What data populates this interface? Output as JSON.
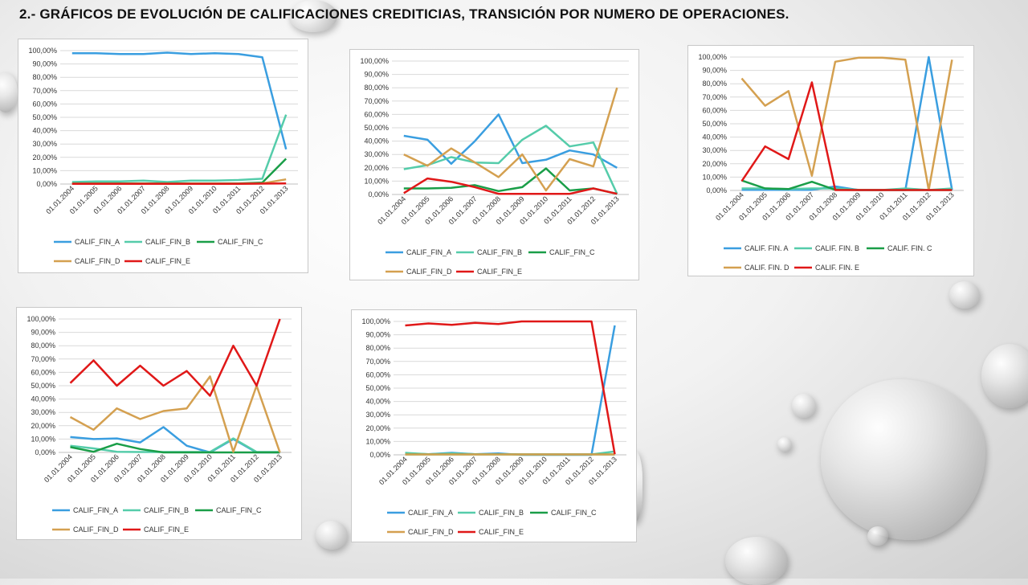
{
  "page": {
    "title": "2.- GRÁFICOS DE EVOLUCIÓN DE CALIFICACIONES CREDITICIAS, TRANSICIÓN POR NUMERO DE OPERACIONES."
  },
  "colors": {
    "A": "#3a9ee0",
    "B": "#55ccaa",
    "C": "#1a9e48",
    "D": "#d4a050",
    "E": "#e01818",
    "grid": "#d9d9d9",
    "axis": "#bfbfbf"
  },
  "chart_data": [
    {
      "type": "line",
      "categories": [
        "01.01.2004",
        "01.01.2005",
        "01.01.2006",
        "01.01.2007",
        "01.01.2008",
        "01.01.2009",
        "01.01.2010",
        "01.01.2011",
        "01.01.2012",
        "01.01.2013"
      ],
      "yticks": [
        "0,00%",
        "10,00%",
        "20,00%",
        "30,00%",
        "40,00%",
        "50,00%",
        "60,00%",
        "70,00%",
        "80,00%",
        "90,00%",
        "100,00%"
      ],
      "ylim": [
        0,
        100
      ],
      "legend_position": "bottom",
      "series": [
        {
          "name": "CALIF_FIN_A",
          "key": "A",
          "values": [
            98,
            98,
            97.5,
            97.5,
            98.5,
            97.5,
            98,
            97.5,
            95,
            26
          ]
        },
        {
          "name": "CALIF_FIN_B",
          "key": "B",
          "values": [
            1.5,
            2,
            2,
            2.5,
            1.5,
            2.5,
            2.5,
            3,
            4,
            52
          ]
        },
        {
          "name": "CALIF_FIN_C",
          "key": "C",
          "values": [
            0.5,
            0.5,
            0.5,
            0.5,
            0.5,
            0.5,
            0.5,
            0.5,
            1,
            19
          ]
        },
        {
          "name": "CALIF_FIN_D",
          "key": "D",
          "values": [
            0.3,
            0.3,
            0.3,
            0.3,
            0.3,
            0.3,
            0.3,
            0.3,
            0.5,
            3.5
          ]
        },
        {
          "name": "CALIF_FIN_E",
          "key": "E",
          "values": [
            0.2,
            0.2,
            0.2,
            0.2,
            0.2,
            0.2,
            0.2,
            0.2,
            0.3,
            0.5
          ]
        }
      ]
    },
    {
      "type": "line",
      "categories": [
        "01.01.2004",
        "01.01.2005",
        "01.01.2006",
        "01.01.2007",
        "01.01.2008",
        "01.01.2009",
        "01.01.2010",
        "01.01.2011",
        "01.01.2012",
        "01.01.2013"
      ],
      "yticks": [
        "0,00%",
        "10,00%",
        "20,00%",
        "30,00%",
        "40,00%",
        "50,00%",
        "60,00%",
        "70,00%",
        "80,00%",
        "90,00%",
        "100,00%"
      ],
      "ylim": [
        0,
        100
      ],
      "legend_position": "bottom",
      "series": [
        {
          "name": "CALIF_FIN_A",
          "key": "A",
          "values": [
            44,
            41,
            23,
            40,
            60,
            23.5,
            26,
            33,
            30,
            20
          ]
        },
        {
          "name": "CALIF_FIN_B",
          "key": "B",
          "values": [
            19,
            22,
            28,
            24,
            23.5,
            41,
            51.5,
            36,
            39,
            0.5
          ]
        },
        {
          "name": "CALIF_FIN_C",
          "key": "C",
          "values": [
            4.5,
            4.5,
            5,
            7,
            2.5,
            5.5,
            19.5,
            3,
            4.5,
            0.5
          ]
        },
        {
          "name": "CALIF_FIN_D",
          "key": "D",
          "values": [
            30,
            21.5,
            34.5,
            24,
            13,
            30,
            3,
            26.5,
            21,
            80
          ]
        },
        {
          "name": "CALIF_FIN_E",
          "key": "E",
          "values": [
            1,
            12,
            9.5,
            5.5,
            0.5,
            0.5,
            0.5,
            0.5,
            4.5,
            0.5
          ]
        }
      ]
    },
    {
      "type": "line",
      "categories": [
        "01.01.2004",
        "01.01.2005",
        "01.01.2006",
        "01.01.2007",
        "01.01.2008",
        "01.01.2009",
        "01.01.2010",
        "01.01.2011",
        "01.01.2012",
        "01.01.2013"
      ],
      "yticks": [
        "0,00%",
        "10,00%",
        "20,00%",
        "30,00%",
        "40,00%",
        "50,00%",
        "60,00%",
        "70,00%",
        "80,00%",
        "90,00%",
        "100,00%"
      ],
      "ylim": [
        0,
        100
      ],
      "legend_position": "bottom",
      "series": [
        {
          "name": "CALIF. FIN. A",
          "key": "A",
          "values": [
            0.5,
            0.5,
            0.5,
            0.5,
            3,
            0.3,
            0.3,
            0.3,
            100,
            0.5
          ]
        },
        {
          "name": "CALIF. FIN. B",
          "key": "B",
          "values": [
            1.5,
            1.5,
            1,
            1.5,
            1.5,
            0.5,
            0.3,
            1.5,
            0.3,
            1.5
          ]
        },
        {
          "name": "CALIF. FIN. C",
          "key": "C",
          "values": [
            7.5,
            1.5,
            1,
            6.5,
            0.5,
            0.3,
            0.3,
            0.3,
            0.3,
            0.3
          ]
        },
        {
          "name": "CALIF. FIN. D",
          "key": "D",
          "values": [
            84,
            63.5,
            74.5,
            11,
            96.5,
            99.5,
            99.5,
            98,
            0.3,
            98
          ]
        },
        {
          "name": "CALIF. FIN. E",
          "key": "E",
          "values": [
            7,
            33,
            23.5,
            81,
            0.3,
            0.3,
            0.3,
            0.3,
            0.3,
            0.3
          ]
        }
      ]
    },
    {
      "type": "line",
      "categories": [
        "01.01.2004",
        "01.01.2005",
        "01.01.2006",
        "01.01.2007",
        "01.01.2008",
        "01.01.2009",
        "01.01.2010",
        "01.01.2011",
        "01.01.2012",
        "01.01.2013"
      ],
      "yticks": [
        "0,00%",
        "10,00%",
        "20,00%",
        "30,00%",
        "40,00%",
        "50,00%",
        "60,00%",
        "70,00%",
        "80,00%",
        "90,00%",
        "100,00%"
      ],
      "ylim": [
        0,
        100
      ],
      "legend_position": "bottom",
      "series": [
        {
          "name": "CALIF_FIN_A",
          "key": "A",
          "values": [
            11.5,
            10,
            10.5,
            7.5,
            19,
            5,
            0,
            10,
            0,
            0
          ]
        },
        {
          "name": "CALIF_FIN_B",
          "key": "B",
          "values": [
            5,
            3,
            0.5,
            0.3,
            0.3,
            0.3,
            0.3,
            10.5,
            0.3,
            0.3
          ]
        },
        {
          "name": "CALIF_FIN_C",
          "key": "C",
          "values": [
            4,
            0.5,
            6.5,
            2.5,
            0,
            0,
            0,
            0,
            0,
            0
          ]
        },
        {
          "name": "CALIF_FIN_D",
          "key": "D",
          "values": [
            26.5,
            17,
            33,
            25,
            31,
            33,
            57,
            0.5,
            50,
            0
          ]
        },
        {
          "name": "CALIF_FIN_E",
          "key": "E",
          "values": [
            52,
            69,
            50,
            65,
            50,
            61,
            42.5,
            80,
            50,
            100
          ]
        }
      ]
    },
    {
      "type": "line",
      "categories": [
        "01.01.2004",
        "01.01.2005",
        "01.01.2006",
        "01.01.2007",
        "01.01.2008",
        "01.01.2009",
        "01.01.2010",
        "01.01.2011",
        "01.01.2012",
        "01.01.2013"
      ],
      "yticks": [
        "0,00%",
        "10,00%",
        "20,00%",
        "30,00%",
        "40,00%",
        "50,00%",
        "60,00%",
        "70,00%",
        "80,00%",
        "90,00%",
        "100,00%"
      ],
      "ylim": [
        0,
        100
      ],
      "legend_position": "bottom",
      "series": [
        {
          "name": "CALIF_FIN_A",
          "key": "A",
          "values": [
            1,
            0.5,
            1.5,
            0.5,
            1,
            0,
            0,
            0,
            0,
            97
          ]
        },
        {
          "name": "CALIF_FIN_B",
          "key": "B",
          "values": [
            1.5,
            0.5,
            1,
            0.5,
            0.5,
            0.3,
            0.3,
            0.3,
            0.3,
            2.5
          ]
        },
        {
          "name": "CALIF_FIN_C",
          "key": "C",
          "values": [
            0.3,
            0.3,
            0.3,
            0.3,
            0.3,
            0.3,
            0.3,
            0.3,
            0.3,
            0.3
          ]
        },
        {
          "name": "CALIF_FIN_D",
          "key": "D",
          "values": [
            0.3,
            0.3,
            0.3,
            0.3,
            0.3,
            0.3,
            0.3,
            0.3,
            0.3,
            0.3
          ]
        },
        {
          "name": "CALIF_FIN_E",
          "key": "E",
          "values": [
            97,
            98.5,
            97.5,
            99,
            98,
            100,
            100,
            100,
            100,
            0.5
          ]
        }
      ]
    }
  ]
}
